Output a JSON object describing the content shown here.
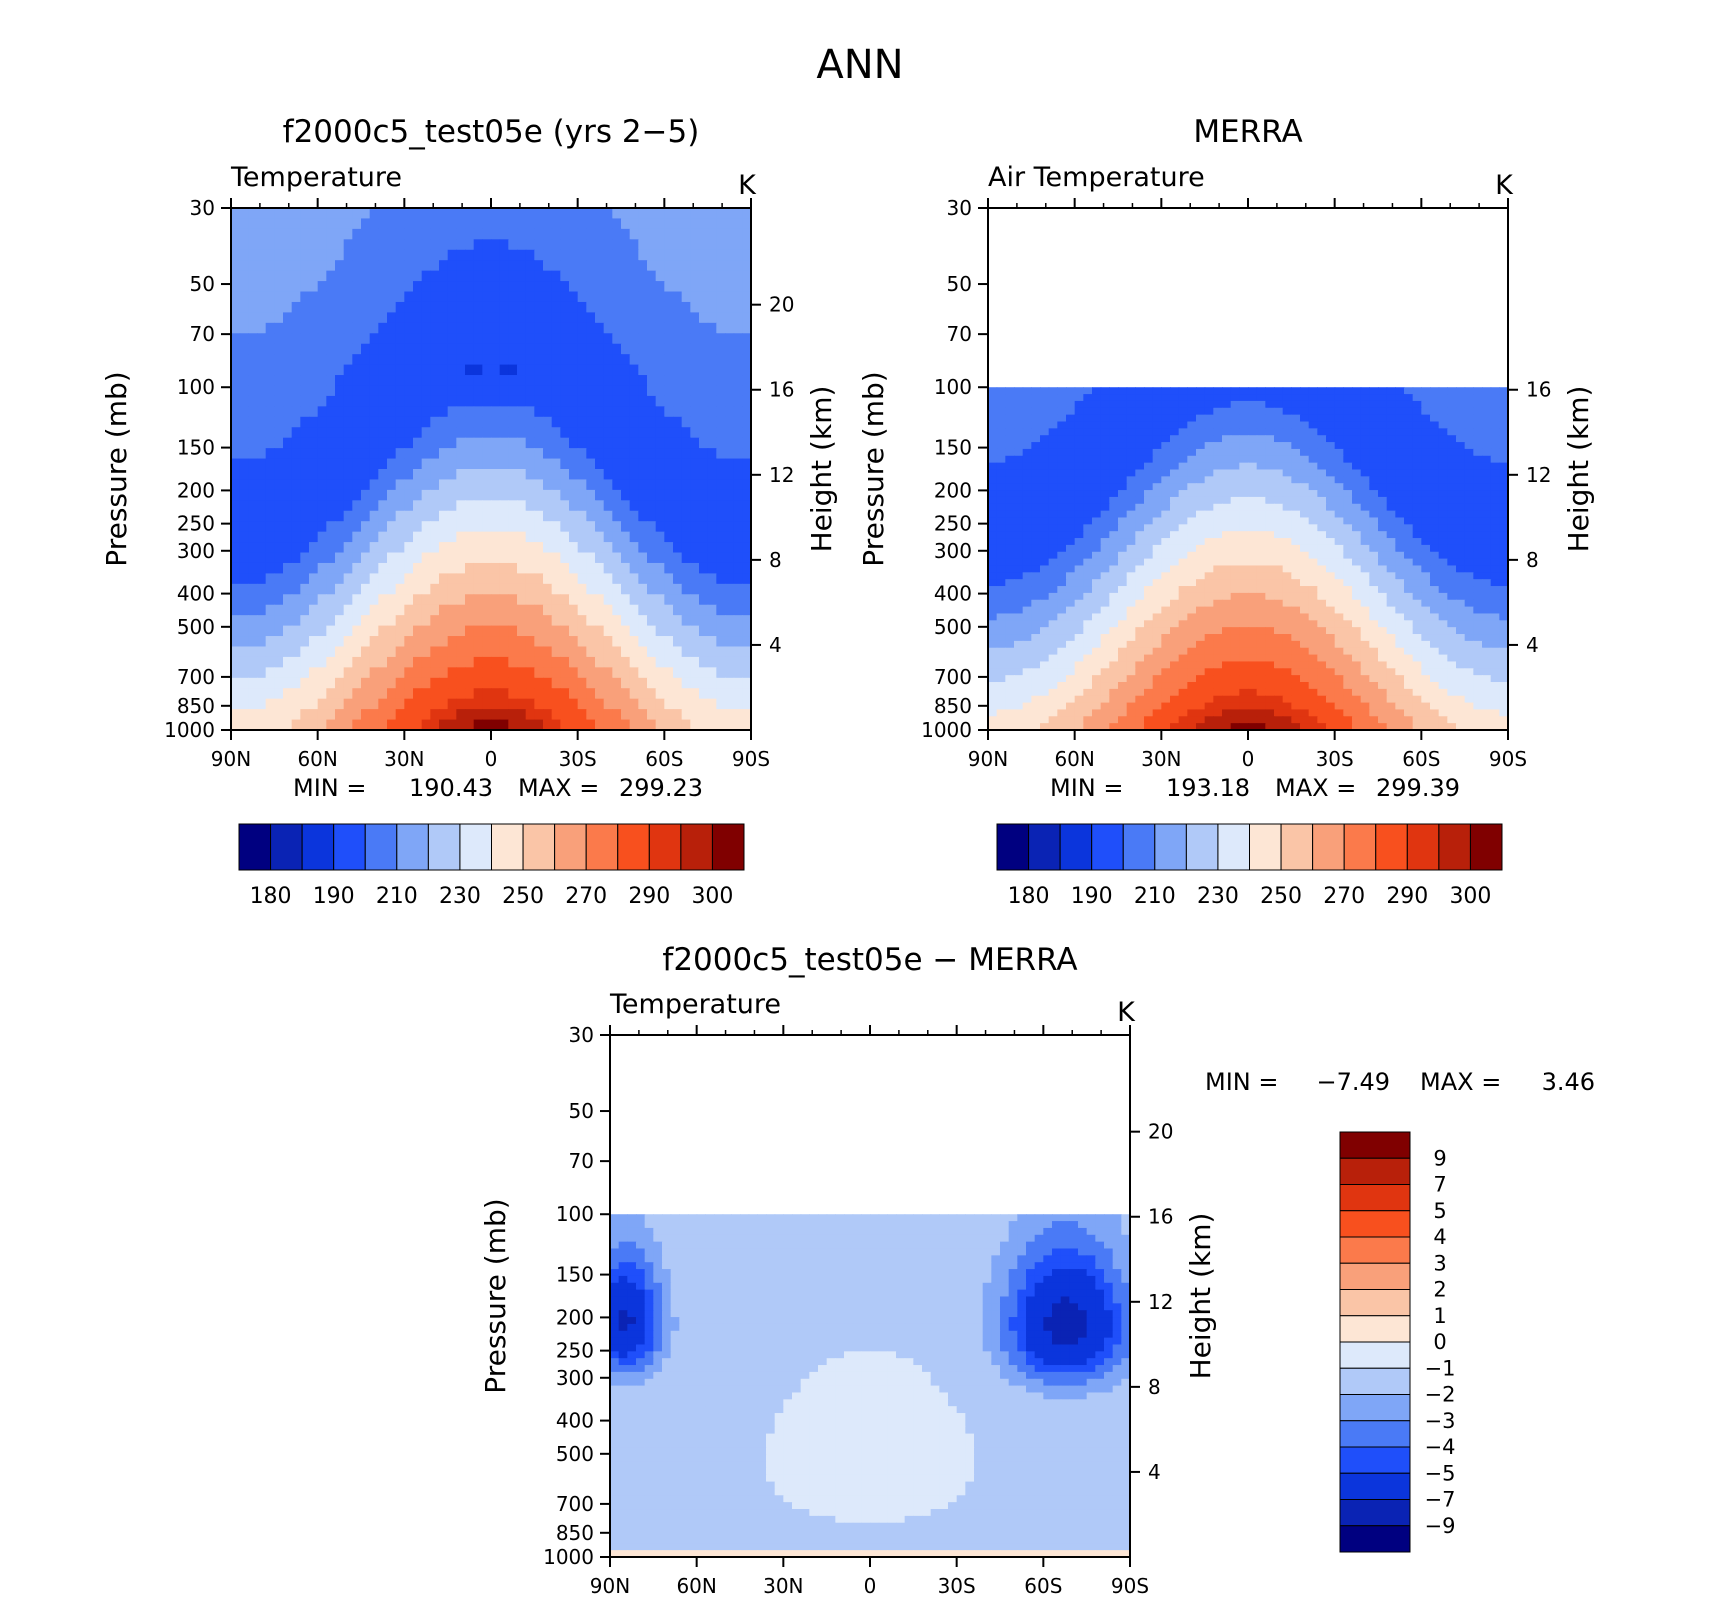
{
  "figure": {
    "title": "ANN"
  },
  "chart_data": [
    {
      "type": "heatmap",
      "id": "model",
      "title": "f2000c5_test05e (yrs 2−5)",
      "variable": "Temperature",
      "units": "K",
      "ylabel": "Pressure (mb)",
      "ylabel_right": "Height (km)",
      "x_ticks": [
        "90N",
        "60N",
        "30N",
        "0",
        "30S",
        "60S",
        "90S"
      ],
      "x_range": [
        90,
        -90
      ],
      "y_ticks": [
        30,
        50,
        70,
        100,
        150,
        200,
        250,
        300,
        400,
        500,
        700,
        850,
        1000
      ],
      "y_range": [
        30,
        1000
      ],
      "y_scale": "log",
      "height_ticks": [
        20,
        16,
        12,
        8,
        4
      ],
      "min_label": "MIN =",
      "min_value": "190.43",
      "max_label": "MAX =",
      "max_value": "299.23",
      "colorbar_labels": [
        "180",
        "190",
        "210",
        "230",
        "250",
        "270",
        "290",
        "300"
      ],
      "data_top": 30
    },
    {
      "type": "heatmap",
      "id": "obs",
      "title": "MERRA",
      "variable": "Air Temperature",
      "units": "K",
      "ylabel": "Pressure (mb)",
      "ylabel_right": "Height (km)",
      "x_ticks": [
        "90N",
        "60N",
        "30N",
        "0",
        "30S",
        "60S",
        "90S"
      ],
      "x_range": [
        90,
        -90
      ],
      "y_ticks": [
        30,
        50,
        70,
        100,
        150,
        200,
        250,
        300,
        400,
        500,
        700,
        850,
        1000
      ],
      "y_range": [
        30,
        1000
      ],
      "y_scale": "log",
      "height_ticks": [
        16,
        12,
        8,
        4
      ],
      "min_label": "MIN =",
      "min_value": "193.18",
      "max_label": "MAX =",
      "max_value": "299.39",
      "colorbar_labels": [
        "180",
        "190",
        "210",
        "230",
        "250",
        "270",
        "290",
        "300"
      ],
      "data_top": 100
    },
    {
      "type": "heatmap",
      "id": "diff",
      "title": "f2000c5_test05e − MERRA",
      "variable": "Temperature",
      "units": "K",
      "ylabel": "Pressure (mb)",
      "ylabel_right": "Height (km)",
      "x_ticks": [
        "90N",
        "60N",
        "30N",
        "0",
        "30S",
        "60S",
        "90S"
      ],
      "x_range": [
        90,
        -90
      ],
      "y_ticks": [
        30,
        50,
        70,
        100,
        150,
        200,
        250,
        300,
        400,
        500,
        700,
        850,
        1000
      ],
      "y_range": [
        30,
        1000
      ],
      "y_scale": "log",
      "height_ticks": [
        20,
        16,
        12,
        8,
        4
      ],
      "min_label": "MIN =",
      "min_value": "−7.49",
      "max_label": "MAX =",
      "max_value": "3.46",
      "colorbar_labels": [
        "9",
        "7",
        "5",
        "4",
        "3",
        "2",
        "1",
        "0",
        "−1",
        "−2",
        "−3",
        "−4",
        "−5",
        "−7",
        "−9"
      ],
      "data_top": 100
    }
  ],
  "palette": [
    "#000080",
    "#0a23b4",
    "#0b35dc",
    "#1f4ffa",
    "#4a7af6",
    "#7fa6f7",
    "#b0c9f8",
    "#dde9fb",
    "#fde6d5",
    "#fac5a7",
    "#f9a07a",
    "#fb7a4b",
    "#f8501e",
    "#e03510",
    "#b8200a",
    "#800000"
  ]
}
